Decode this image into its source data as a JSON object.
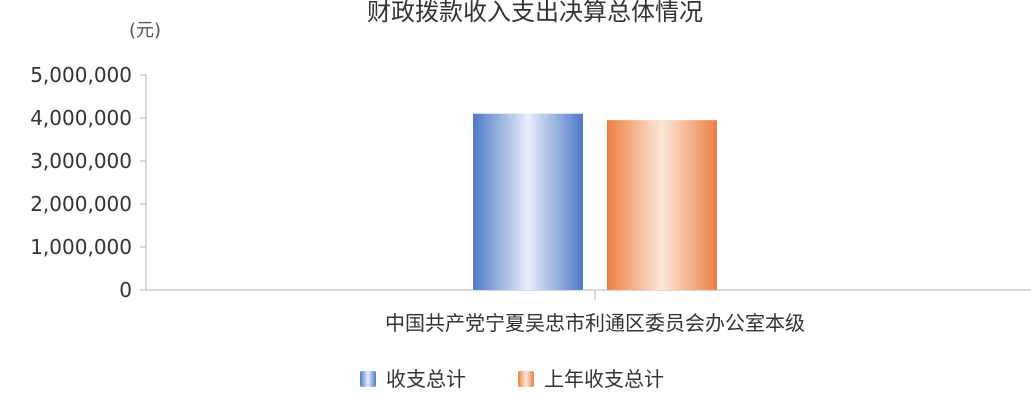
{
  "chart_data": {
    "type": "bar",
    "title": "财政拨款收入支出决算总体情况",
    "unit_label": "(元)",
    "categories": [
      "中国共产党宁夏吴忠市利通区委员会办公室本级"
    ],
    "series": [
      {
        "name": "收支总计",
        "values": [
          4100000
        ],
        "color": "#5b83cf"
      },
      {
        "name": "上年收支总计",
        "values": [
          3950000
        ],
        "color": "#ef8a50"
      }
    ],
    "ylim": [
      0,
      5000000
    ],
    "yticks": [
      "0",
      "1,000,000",
      "2,000,000",
      "3,000,000",
      "4,000,000",
      "5,000,000"
    ],
    "legend_position": "bottom-center",
    "grid": false
  },
  "colors": {
    "axis": "#b5b5b5",
    "text": "#333333",
    "series_1_base": "#4f79c9",
    "series_1_light": "#e7eefb",
    "series_2_base": "#ec7f43",
    "series_2_light": "#fde7d8"
  }
}
